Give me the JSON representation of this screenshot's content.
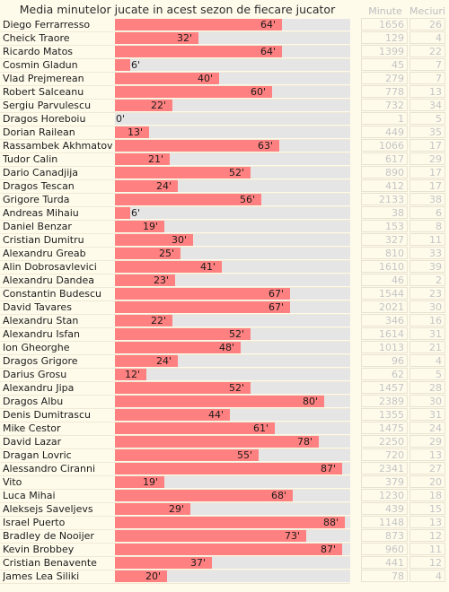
{
  "chart_data": {
    "type": "bar",
    "title": "Media minutelor jucate in acest sezon de fiecare jucator",
    "columns": {
      "minutes": "Minute",
      "matches": "Meciuri"
    },
    "max_value": 90,
    "value_suffix": "'",
    "players": [
      {
        "name": "Diego Ferrarresso",
        "avg": 64,
        "minutes": 1656,
        "matches": 26
      },
      {
        "name": "Cheick Traore",
        "avg": 32,
        "minutes": 129,
        "matches": 4
      },
      {
        "name": "Ricardo Matos",
        "avg": 64,
        "minutes": 1399,
        "matches": 22
      },
      {
        "name": "Cosmin Gladun",
        "avg": 6,
        "minutes": 45,
        "matches": 7
      },
      {
        "name": "Vlad Prejmerean",
        "avg": 40,
        "minutes": 279,
        "matches": 7
      },
      {
        "name": "Robert Salceanu",
        "avg": 60,
        "minutes": 778,
        "matches": 13
      },
      {
        "name": "Sergiu Parvulescu",
        "avg": 22,
        "minutes": 732,
        "matches": 34
      },
      {
        "name": "Dragos Horeboiu",
        "avg": 0,
        "minutes": 1,
        "matches": 5
      },
      {
        "name": "Dorian Railean",
        "avg": 13,
        "minutes": 449,
        "matches": 35
      },
      {
        "name": "Rassambek Akhmatov",
        "avg": 63,
        "minutes": 1066,
        "matches": 17
      },
      {
        "name": "Tudor Calin",
        "avg": 21,
        "minutes": 617,
        "matches": 29
      },
      {
        "name": "Dario Canadjija",
        "avg": 52,
        "minutes": 890,
        "matches": 17
      },
      {
        "name": "Dragos Tescan",
        "avg": 24,
        "minutes": 412,
        "matches": 17
      },
      {
        "name": "Grigore Turda",
        "avg": 56,
        "minutes": 2133,
        "matches": 38
      },
      {
        "name": "Andreas Mihaiu",
        "avg": 6,
        "minutes": 38,
        "matches": 6
      },
      {
        "name": "Daniel Benzar",
        "avg": 19,
        "minutes": 153,
        "matches": 8
      },
      {
        "name": "Cristian Dumitru",
        "avg": 30,
        "minutes": 327,
        "matches": 11
      },
      {
        "name": "Alexandru Greab",
        "avg": 25,
        "minutes": 810,
        "matches": 33
      },
      {
        "name": "Alin Dobrosavlevici",
        "avg": 41,
        "minutes": 1610,
        "matches": 39
      },
      {
        "name": "Alexandru Dandea",
        "avg": 23,
        "minutes": 46,
        "matches": 2
      },
      {
        "name": "Constantin Budescu",
        "avg": 67,
        "minutes": 1544,
        "matches": 23
      },
      {
        "name": "David Tavares",
        "avg": 67,
        "minutes": 2021,
        "matches": 30
      },
      {
        "name": "Alexandru Stan",
        "avg": 22,
        "minutes": 346,
        "matches": 16
      },
      {
        "name": "Alexandru Isfan",
        "avg": 52,
        "minutes": 1614,
        "matches": 31
      },
      {
        "name": "Ion Gheorghe",
        "avg": 48,
        "minutes": 1013,
        "matches": 21
      },
      {
        "name": "Dragos Grigore",
        "avg": 24,
        "minutes": 96,
        "matches": 4
      },
      {
        "name": "Darius Grosu",
        "avg": 12,
        "minutes": 62,
        "matches": 5
      },
      {
        "name": "Alexandru Jipa",
        "avg": 52,
        "minutes": 1457,
        "matches": 28
      },
      {
        "name": "Dragos Albu",
        "avg": 80,
        "minutes": 2389,
        "matches": 30
      },
      {
        "name": "Denis Dumitrascu",
        "avg": 44,
        "minutes": 1355,
        "matches": 31
      },
      {
        "name": "Mike Cestor",
        "avg": 61,
        "minutes": 1475,
        "matches": 24
      },
      {
        "name": "David Lazar",
        "avg": 78,
        "minutes": 2250,
        "matches": 29
      },
      {
        "name": "Dragan Lovric",
        "avg": 55,
        "minutes": 720,
        "matches": 13
      },
      {
        "name": "Alessandro Ciranni",
        "avg": 87,
        "minutes": 2341,
        "matches": 27
      },
      {
        "name": "Vito",
        "avg": 19,
        "minutes": 379,
        "matches": 20
      },
      {
        "name": "Luca Mihai",
        "avg": 68,
        "minutes": 1230,
        "matches": 18
      },
      {
        "name": "Aleksejs Saveljevs",
        "avg": 29,
        "minutes": 439,
        "matches": 15
      },
      {
        "name": "Israel Puerto",
        "avg": 88,
        "minutes": 1148,
        "matches": 13
      },
      {
        "name": "Bradley de Nooijer",
        "avg": 73,
        "minutes": 873,
        "matches": 12
      },
      {
        "name": "Kevin Brobbey",
        "avg": 87,
        "minutes": 960,
        "matches": 11
      },
      {
        "name": "Cristian Benavente",
        "avg": 37,
        "minutes": 441,
        "matches": 12
      },
      {
        "name": "James Lea Siliki",
        "avg": 20,
        "minutes": 78,
        "matches": 4
      }
    ]
  }
}
